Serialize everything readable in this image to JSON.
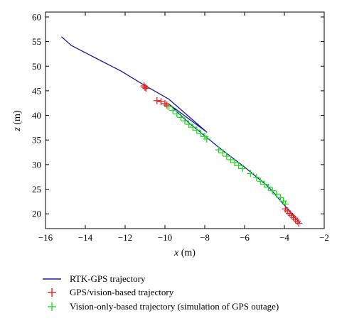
{
  "chart_data": {
    "type": "scatter",
    "xlabel_var": "x",
    "xlabel_unit": "(m)",
    "ylabel_var": "z",
    "ylabel_unit": "(m)",
    "xlim": [
      -16,
      -2
    ],
    "ylim": [
      17,
      61
    ],
    "xticks": [
      -16,
      -14,
      -12,
      -10,
      -8,
      -6,
      -4,
      -2
    ],
    "yticks": [
      20,
      25,
      30,
      35,
      40,
      45,
      50,
      55,
      60
    ],
    "grid": false,
    "legend_position": "bottom",
    "series": [
      {
        "name": "RTK-GPS trajectory",
        "kind": "line",
        "color": "#1a1aa0",
        "points": [
          [
            -15.2,
            56.0
          ],
          [
            -14.7,
            54.2
          ],
          [
            -13.5,
            51.7
          ],
          [
            -12.2,
            49.0
          ],
          [
            -11.1,
            46.3
          ],
          [
            -9.8,
            43.3
          ],
          [
            -7.9,
            36.6
          ],
          [
            -9.8,
            42.3
          ],
          [
            -8.8,
            38.5
          ],
          [
            -7.2,
            33.2
          ],
          [
            -6.0,
            29.5
          ],
          [
            -4.8,
            25.5
          ],
          [
            -3.2,
            18.0
          ]
        ]
      },
      {
        "name": "GPS/vision-based trajectory",
        "kind": "marker",
        "marker": "+",
        "color": "#e52222",
        "points": [
          [
            -11.05,
            46.0
          ],
          [
            -10.95,
            45.5
          ],
          [
            -11.0,
            45.7
          ],
          [
            -10.4,
            43.0
          ],
          [
            -10.2,
            42.8
          ],
          [
            -10.0,
            42.4
          ],
          [
            -9.9,
            42.1
          ],
          [
            -3.95,
            21.0
          ],
          [
            -3.85,
            20.6
          ],
          [
            -3.75,
            20.1
          ],
          [
            -3.65,
            19.7
          ],
          [
            -3.55,
            19.3
          ],
          [
            -3.45,
            18.9
          ],
          [
            -3.35,
            18.5
          ],
          [
            -3.28,
            18.1
          ]
        ]
      },
      {
        "name": "Vision-only-based trajectory (simulation of GPS outage)",
        "kind": "marker",
        "marker": "+",
        "color": "#22dd22",
        "points": [
          [
            -9.8,
            41.8
          ],
          [
            -9.6,
            41.0
          ],
          [
            -9.4,
            40.3
          ],
          [
            -9.2,
            39.6
          ],
          [
            -9.0,
            38.9
          ],
          [
            -8.8,
            38.2
          ],
          [
            -8.6,
            37.6
          ],
          [
            -8.4,
            37.0
          ],
          [
            -8.2,
            36.3
          ],
          [
            -8.0,
            35.7
          ],
          [
            -7.9,
            35.2
          ],
          [
            -7.3,
            33.0
          ],
          [
            -7.1,
            32.4
          ],
          [
            -6.9,
            31.7
          ],
          [
            -6.7,
            31.0
          ],
          [
            -6.5,
            30.4
          ],
          [
            -6.3,
            29.8
          ],
          [
            -6.1,
            29.2
          ],
          [
            -5.7,
            28.2
          ],
          [
            -5.4,
            27.4
          ],
          [
            -5.2,
            26.6
          ],
          [
            -5.0,
            26.0
          ],
          [
            -4.8,
            25.4
          ],
          [
            -4.6,
            24.7
          ],
          [
            -4.4,
            24.0
          ],
          [
            -4.2,
            23.3
          ],
          [
            -4.05,
            22.6
          ],
          [
            -3.95,
            22.0
          ]
        ]
      }
    ]
  }
}
